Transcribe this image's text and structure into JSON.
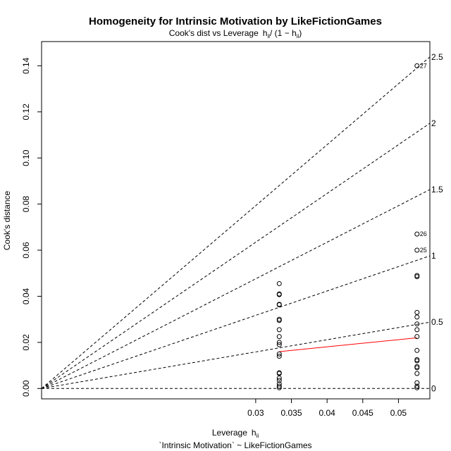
{
  "chart_data": {
    "type": "scatter",
    "title": "Homogeneity for Intrinsic Motivation by LikeFictionGames",
    "subtitle": "Cook's dist vs Leverage",
    "subtitle_math_main": "h",
    "subtitle_math_sub": "ii",
    "subtitle_math_rest": "/ (1 − h",
    "subtitle_math_sub2": "ii",
    "subtitle_math_close": ")",
    "xlabel": "Leverage",
    "xlabel_math_main": "h",
    "xlabel_math_sub": "ii",
    "xlabel2": "`Intrinsic Motivation` ~ LikeFictionGames",
    "ylabel": "Cook's distance",
    "xlim": [
      0.0,
      0.0544
    ],
    "ylim": [
      -0.0045,
      0.1505
    ],
    "xticks": [
      "0.03",
      "0.035",
      "0.04",
      "0.045",
      "0.05"
    ],
    "xtick_values": [
      0.03,
      0.035,
      0.04,
      0.045,
      0.05
    ],
    "yticks": [
      "0.00",
      "0.02",
      "0.04",
      "0.06",
      "0.08",
      "0.10",
      "0.12",
      "0.14"
    ],
    "ytick_values": [
      0.0,
      0.02,
      0.04,
      0.06,
      0.08,
      0.1,
      0.12,
      0.14
    ],
    "groups": [
      {
        "leverage": 0.0333,
        "cooks": [
          0.0455,
          0.041,
          0.0407,
          0.0365,
          0.0363,
          0.03,
          0.0295,
          0.0255,
          0.0225,
          0.02,
          0.019,
          0.015,
          0.014,
          0.0068,
          0.0065,
          0.0045,
          0.0035,
          0.002,
          0.001,
          0.0003
        ]
      },
      {
        "leverage": 0.0526,
        "cooks": [
          0.14,
          0.067,
          0.06,
          0.049,
          0.0485,
          0.033,
          0.031,
          0.028,
          0.0255,
          0.0225,
          0.0165,
          0.0125,
          0.012,
          0.0095,
          0.009,
          0.0065,
          0.0025,
          0.001,
          0.0003
        ]
      }
    ],
    "point_labels": [
      {
        "text": "27",
        "leverage": 0.0526,
        "cooks": 0.14
      },
      {
        "text": "26",
        "leverage": 0.0526,
        "cooks": 0.067
      },
      {
        "text": "25",
        "leverage": 0.0526,
        "cooks": 0.06
      }
    ],
    "contours": [
      {
        "label": "0",
        "value": 0
      },
      {
        "label": "0.5",
        "value": 0.5
      },
      {
        "label": "1",
        "value": 1
      },
      {
        "label": "1.5",
        "value": 1.5
      },
      {
        "label": "2",
        "value": 2
      },
      {
        "label": "2.5",
        "value": 2.5
      }
    ],
    "smoother": {
      "color": "#ff0000",
      "x": [
        0.0333,
        0.0526
      ],
      "y": [
        0.016,
        0.022
      ]
    }
  }
}
